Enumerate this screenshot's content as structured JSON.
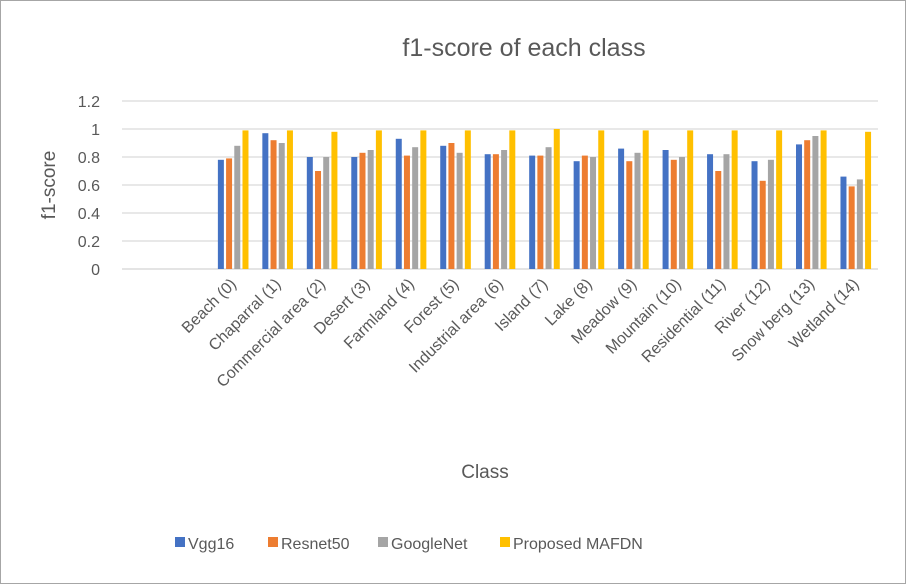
{
  "chart_data": {
    "type": "bar",
    "title": "f1-score of each class",
    "xlabel": "Class",
    "ylabel": "f1-score",
    "ylim": [
      0,
      1.2
    ],
    "yticks": [
      "0",
      "0.2",
      "0.4",
      "0.6",
      "0.8",
      "1",
      "1.2"
    ],
    "grid": true,
    "legend_position": "bottom",
    "categories": [
      "Beach (0)",
      "Chaparral (1)",
      "Commercial area (2)",
      "Desert (3)",
      "Farmland (4)",
      "Forest (5)",
      "Industrial area (6)",
      "Island (7)",
      "Lake (8)",
      "Meadow (9)",
      "Mountain (10)",
      "Residential (11)",
      "River (12)",
      "Snow berg (13)",
      "Wetland (14)"
    ],
    "series": [
      {
        "name": "Vgg16",
        "color": "#4472c4",
        "values": [
          0.78,
          0.97,
          0.8,
          0.8,
          0.93,
          0.88,
          0.82,
          0.81,
          0.77,
          0.86,
          0.85,
          0.82,
          0.77,
          0.89,
          0.66
        ]
      },
      {
        "name": "Resnet50",
        "color": "#ed7d31",
        "values": [
          0.79,
          0.92,
          0.7,
          0.83,
          0.81,
          0.9,
          0.82,
          0.81,
          0.81,
          0.77,
          0.78,
          0.7,
          0.63,
          0.92,
          0.59
        ]
      },
      {
        "name": "GoogleNet",
        "color": "#a5a5a5",
        "values": [
          0.88,
          0.9,
          0.8,
          0.85,
          0.87,
          0.83,
          0.85,
          0.87,
          0.8,
          0.83,
          0.8,
          0.82,
          0.78,
          0.95,
          0.64
        ]
      },
      {
        "name": "Proposed MAFDN",
        "color": "#ffc000",
        "values": [
          0.99,
          0.99,
          0.98,
          0.99,
          0.99,
          0.99,
          0.99,
          1.0,
          0.99,
          0.99,
          0.99,
          0.99,
          0.99,
          0.99,
          0.98
        ]
      }
    ]
  }
}
